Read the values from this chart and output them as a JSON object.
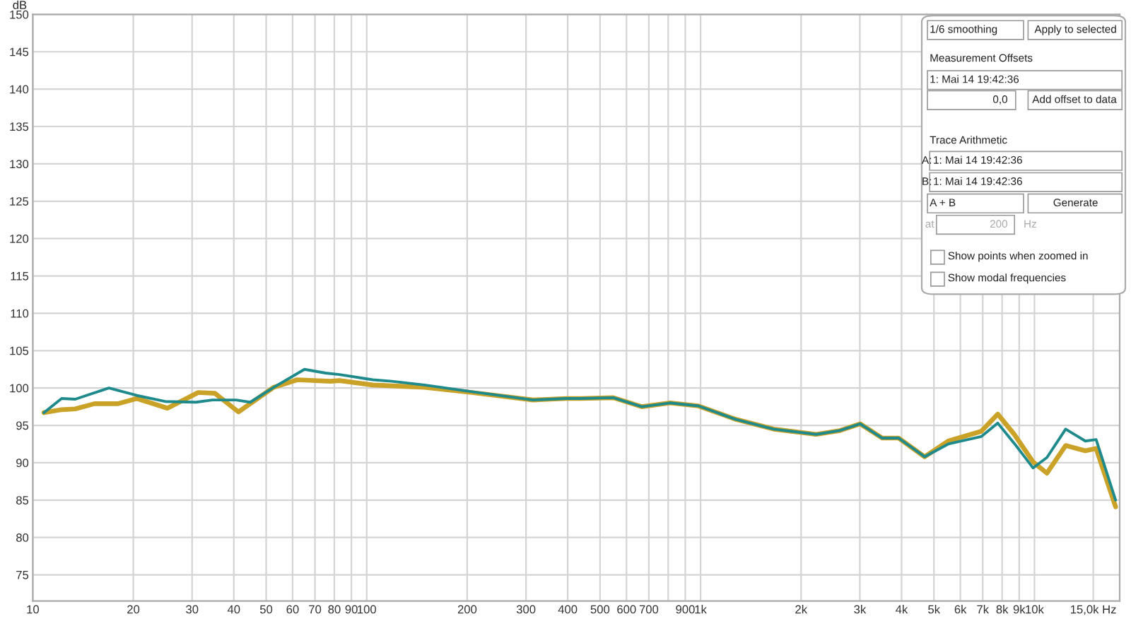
{
  "chart_data": {
    "type": "line",
    "ylabel": "dB",
    "log": "x",
    "grid": true,
    "legend": false,
    "marker": "none",
    "line_style": "solid",
    "xlim": [
      10,
      18000
    ],
    "ylim": [
      71.5,
      150
    ],
    "xticks": [
      10,
      20,
      30,
      40,
      50,
      60,
      70,
      80,
      90,
      100,
      200,
      300,
      400,
      500,
      600,
      700,
      {
        "value": 800,
        "label": null
      },
      900,
      {
        "value": 1000,
        "label": "1k"
      },
      {
        "value": 2000,
        "label": "2k"
      },
      {
        "value": 3000,
        "label": "3k"
      },
      {
        "value": 4000,
        "label": "4k"
      },
      {
        "value": 5000,
        "label": "5k"
      },
      {
        "value": 6000,
        "label": "6k"
      },
      {
        "value": 7000,
        "label": "7k"
      },
      {
        "value": 8000,
        "label": "8k"
      },
      {
        "value": 9000,
        "label": "9k"
      },
      {
        "value": 10000,
        "label": "10k"
      },
      {
        "value": 15000,
        "label": "15,0k Hz"
      }
    ],
    "yticks": [
      75,
      80,
      85,
      90,
      95,
      100,
      105,
      110,
      115,
      120,
      125,
      130,
      135,
      140,
      145,
      150
    ],
    "series": [
      {
        "color": "#c9a227",
        "x": [
          10.8,
          12.2,
          13.4,
          15.3,
          18.0,
          20.5,
          25.3,
          31.3,
          35.1,
          41.3,
          52.7,
          62,
          77.8,
          82.9,
          104.3,
          149,
          206.5,
          315,
          396,
          436,
          548,
          667,
          810,
          985,
          1276,
          1656,
          2219,
          2612,
          3006,
          3500,
          3919,
          4688,
          5517,
          6925,
          7766,
          8696,
          9908,
          10900,
          12400,
          14200,
          15300,
          17500
        ],
        "values": [
          96.7,
          97.1,
          97.2,
          97.9,
          97.9,
          98.6,
          97.3,
          99.4,
          99.3,
          96.8,
          100.1,
          101.1,
          100.9,
          101.0,
          100.4,
          100.1,
          99.4,
          98.4,
          98.6,
          98.6,
          98.7,
          97.5,
          98.0,
          97.6,
          95.8,
          94.5,
          93.8,
          94.3,
          95.2,
          93.3,
          93.3,
          90.8,
          92.9,
          94.2,
          96.5,
          93.8,
          90.1,
          88.6,
          92.3,
          91.6,
          91.9,
          84.1
        ]
      },
      {
        "color": "#1f8a8c",
        "x": [
          10.8,
          12.2,
          13.4,
          16.9,
          20.5,
          24.9,
          30.8,
          34.5,
          40.6,
          44.8,
          52.7,
          65.1,
          75.3,
          82.9,
          104.3,
          118.9,
          149,
          206.5,
          315,
          396,
          436,
          548,
          667,
          810,
          985,
          1276,
          1656,
          2219,
          2612,
          3006,
          3500,
          3919,
          4688,
          5517,
          6925,
          7766,
          8696,
          9908,
          10900,
          12400,
          14200,
          15300,
          17500
        ],
        "values": [
          96.7,
          98.6,
          98.5,
          100.0,
          99.0,
          98.2,
          98.1,
          98.4,
          98.4,
          98.1,
          100.1,
          102.5,
          102.0,
          101.8,
          101.1,
          100.9,
          100.4,
          99.5,
          98.4,
          98.6,
          98.6,
          98.7,
          97.5,
          98.0,
          97.6,
          95.8,
          94.5,
          93.8,
          94.3,
          95.2,
          93.3,
          93.3,
          90.8,
          92.5,
          93.5,
          95.3,
          92.6,
          89.3,
          90.7,
          94.5,
          92.9,
          93.1,
          85.0
        ]
      }
    ],
    "annotations": [
      "1/6 smoothing",
      "Apply to selected",
      "Measurement Offsets",
      "1: Mai 14 19:42:36",
      "0,0",
      "Add offset to data",
      "Trace Arithmetic",
      "A:",
      "1: Mai 14 19:42:36",
      "B:",
      "1: Mai 14 19:42:36",
      "A + B",
      "Generate",
      "at",
      "200",
      "Hz",
      "Show points when zoomed in",
      "Show modal frequencies"
    ]
  }
}
